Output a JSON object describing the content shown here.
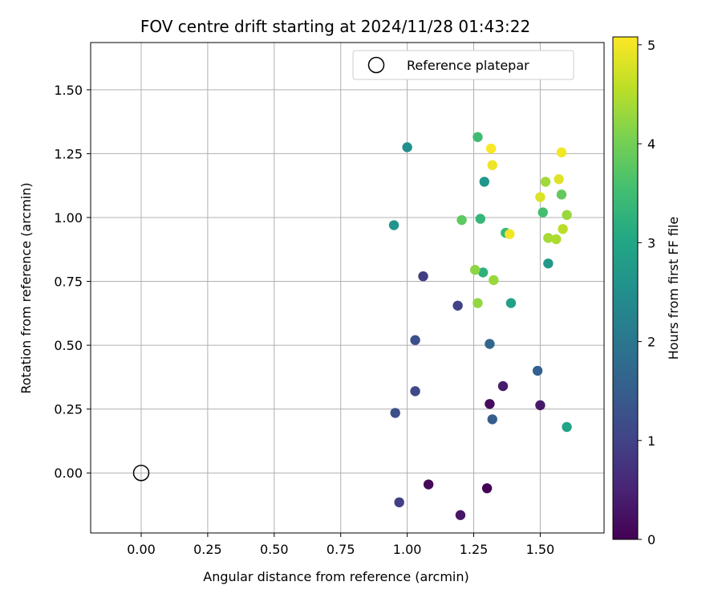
{
  "chart_data": {
    "type": "scatter",
    "title": "FOV centre drift starting at 2024/11/28 01:43:22",
    "xlabel": "Angular distance from reference (arcmin)",
    "ylabel": "Rotation from reference (arcmin)",
    "xlim": [
      -0.19,
      1.74
    ],
    "ylim": [
      -0.235,
      1.685
    ],
    "x_ticks": [
      0.0,
      0.25,
      0.5,
      0.75,
      1.0,
      1.25,
      1.5
    ],
    "x_tick_labels": [
      "0.00",
      "0.25",
      "0.50",
      "0.75",
      "1.00",
      "1.25",
      "1.50"
    ],
    "y_ticks": [
      0.0,
      0.25,
      0.5,
      0.75,
      1.0,
      1.25,
      1.5
    ],
    "y_tick_labels": [
      "0.00",
      "0.25",
      "0.50",
      "0.75",
      "1.00",
      "1.25",
      "1.50"
    ],
    "grid": true,
    "legend": {
      "placement": "top-right",
      "entries": [
        "Reference platepar"
      ]
    },
    "reference_point": {
      "x": 0.0,
      "y": 0.0,
      "name": "Reference platepar"
    },
    "colorbar": {
      "label": "Hours from first FF file",
      "min": 0,
      "max": 5.08,
      "ticks": [
        0,
        1,
        2,
        3,
        4,
        5
      ],
      "tick_labels": [
        "0",
        "1",
        "2",
        "3",
        "4",
        "5"
      ],
      "colormap": "viridis"
    },
    "points": [
      {
        "x": 1.3,
        "y": -0.06,
        "c": 0.02
      },
      {
        "x": 1.08,
        "y": -0.045,
        "c": 0.1
      },
      {
        "x": 1.2,
        "y": -0.165,
        "c": 0.3
      },
      {
        "x": 1.31,
        "y": 0.27,
        "c": 0.15
      },
      {
        "x": 1.5,
        "y": 0.265,
        "c": 0.35
      },
      {
        "x": 1.36,
        "y": 0.34,
        "c": 0.4
      },
      {
        "x": 0.97,
        "y": -0.115,
        "c": 0.95
      },
      {
        "x": 0.955,
        "y": 0.235,
        "c": 1.2
      },
      {
        "x": 1.03,
        "y": 0.32,
        "c": 1.1
      },
      {
        "x": 1.03,
        "y": 0.52,
        "c": 1.25
      },
      {
        "x": 1.06,
        "y": 0.77,
        "c": 0.9
      },
      {
        "x": 1.19,
        "y": 0.655,
        "c": 1.0
      },
      {
        "x": 1.32,
        "y": 0.21,
        "c": 1.5
      },
      {
        "x": 1.31,
        "y": 0.505,
        "c": 1.7
      },
      {
        "x": 1.49,
        "y": 0.4,
        "c": 1.55
      },
      {
        "x": 1.0,
        "y": 1.275,
        "c": 2.5
      },
      {
        "x": 0.95,
        "y": 0.97,
        "c": 2.6
      },
      {
        "x": 1.29,
        "y": 1.14,
        "c": 2.65
      },
      {
        "x": 1.53,
        "y": 0.82,
        "c": 2.7
      },
      {
        "x": 1.39,
        "y": 0.665,
        "c": 2.9
      },
      {
        "x": 1.6,
        "y": 0.18,
        "c": 2.95
      },
      {
        "x": 1.285,
        "y": 0.785,
        "c": 3.25
      },
      {
        "x": 1.37,
        "y": 0.94,
        "c": 3.4
      },
      {
        "x": 1.275,
        "y": 0.995,
        "c": 3.35
      },
      {
        "x": 1.265,
        "y": 1.315,
        "c": 3.5
      },
      {
        "x": 1.51,
        "y": 1.02,
        "c": 3.55
      },
      {
        "x": 1.205,
        "y": 0.99,
        "c": 3.8
      },
      {
        "x": 1.58,
        "y": 1.09,
        "c": 3.85
      },
      {
        "x": 1.255,
        "y": 0.795,
        "c": 4.2
      },
      {
        "x": 1.265,
        "y": 0.665,
        "c": 4.25
      },
      {
        "x": 1.325,
        "y": 0.755,
        "c": 4.3
      },
      {
        "x": 1.52,
        "y": 1.14,
        "c": 4.35
      },
      {
        "x": 1.6,
        "y": 1.01,
        "c": 4.3
      },
      {
        "x": 1.53,
        "y": 0.92,
        "c": 4.4
      },
      {
        "x": 1.56,
        "y": 0.915,
        "c": 4.45
      },
      {
        "x": 1.585,
        "y": 0.955,
        "c": 4.55
      },
      {
        "x": 1.5,
        "y": 1.08,
        "c": 4.8
      },
      {
        "x": 1.57,
        "y": 1.15,
        "c": 4.85
      },
      {
        "x": 1.385,
        "y": 0.935,
        "c": 5.0
      },
      {
        "x": 1.32,
        "y": 1.205,
        "c": 4.95
      },
      {
        "x": 1.315,
        "y": 1.27,
        "c": 5.05
      },
      {
        "x": 1.58,
        "y": 1.255,
        "c": 5.0
      }
    ]
  }
}
